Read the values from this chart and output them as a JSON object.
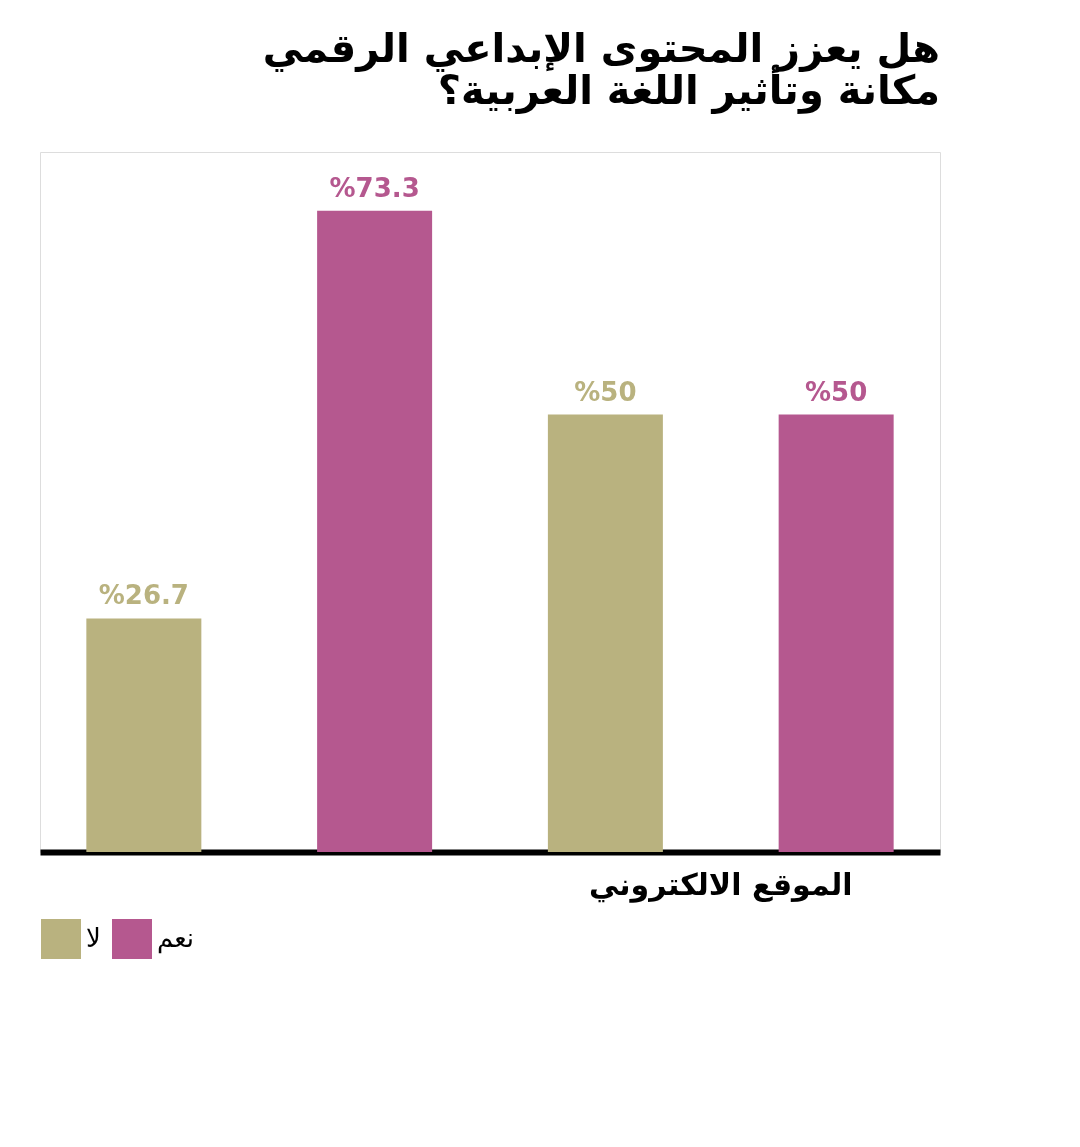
{
  "chart_data": {
    "type": "bar",
    "title": "هل يعزز المحتوى الإبداعي الرقمي مكانة وتأثير اللغة العربية؟",
    "categories": [
      null,
      "الموقع الالكتروني"
    ],
    "series": [
      {
        "name": "لا",
        "color": "#b9b27f",
        "values": [
          26.7,
          50
        ],
        "value_labels": [
          "%26.7",
          "%50"
        ]
      },
      {
        "name": "نعم",
        "color": "#b5588f",
        "values": [
          73.3,
          50
        ],
        "value_labels": [
          "%73.3",
          "%50"
        ]
      }
    ],
    "legend": "bottom"
  }
}
